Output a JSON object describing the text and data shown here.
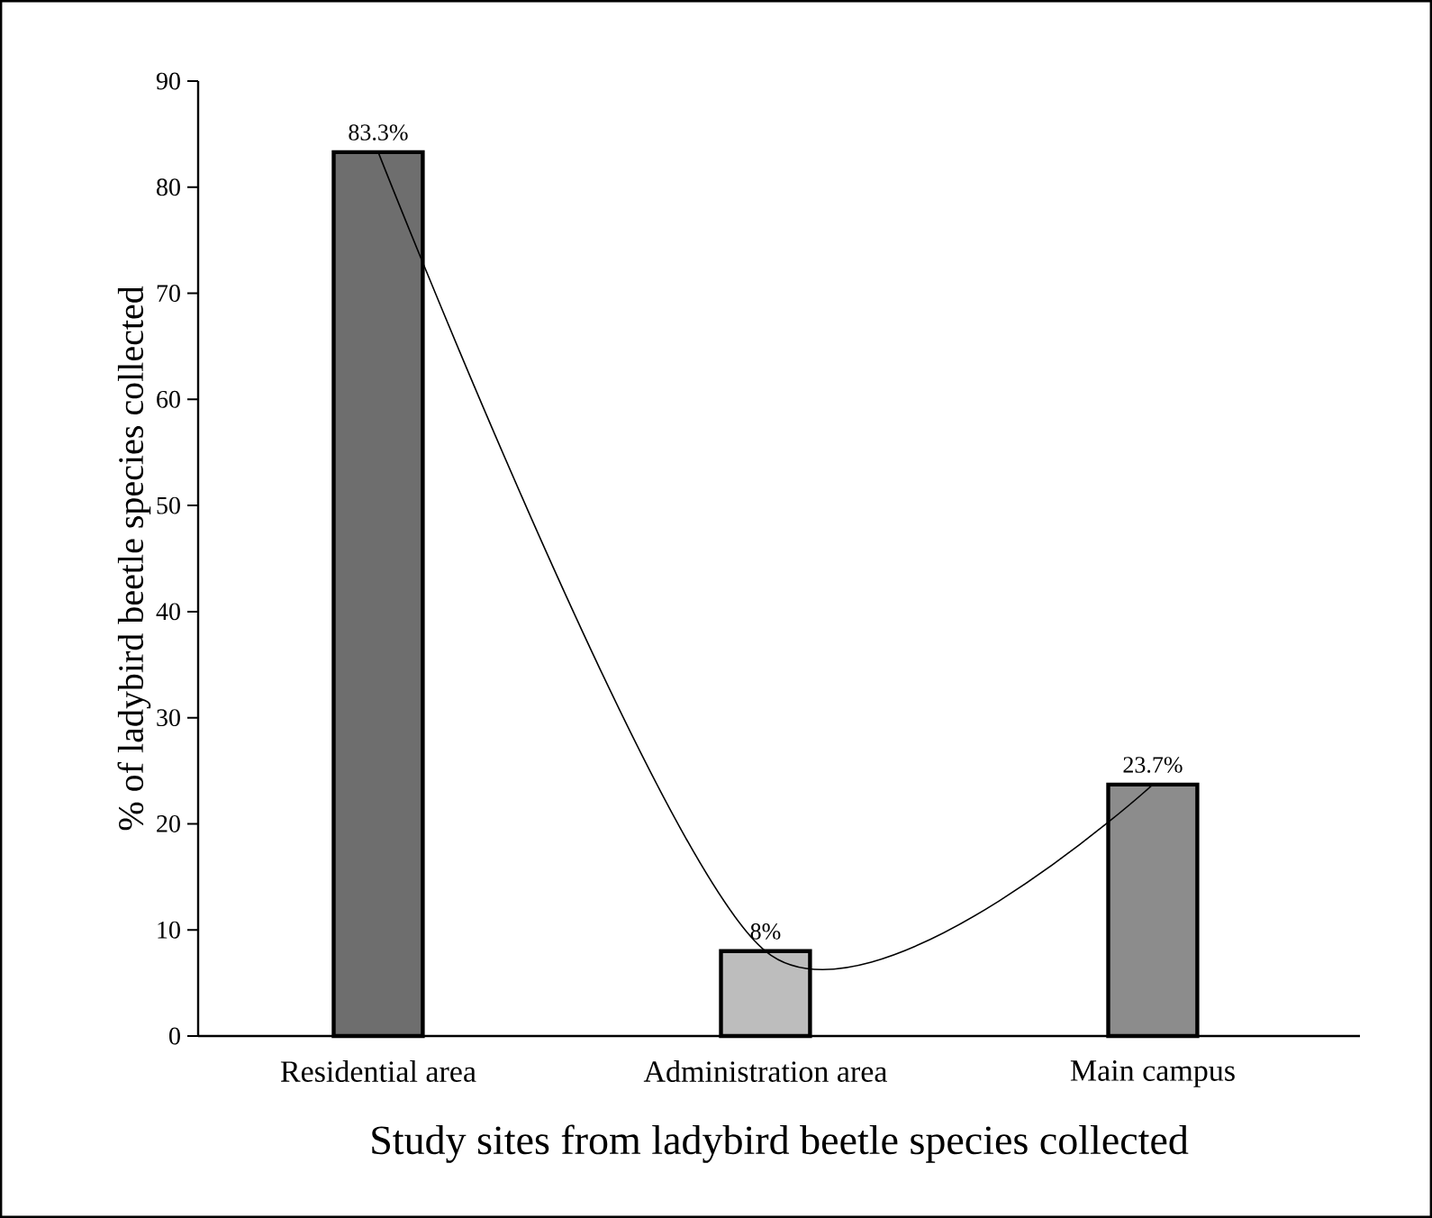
{
  "chart_data": {
    "type": "bar",
    "xlabel": "Study sites from ladybird beetle species collected",
    "ylabel": "% of ladybird beetle species collected",
    "categories": [
      "Residential area",
      "Administration area",
      "Main campus"
    ],
    "series": [
      {
        "colors": [
          "#6e6e6e",
          "#bdbdbd",
          "#8c8c8c"
        ],
        "values": [
          83.3,
          8,
          23.7
        ],
        "value_labels": [
          "83.3%",
          "8%",
          "23.7%"
        ]
      },
      {
        "type": "line",
        "color": "#000000",
        "values": [
          83.3,
          8,
          23.7
        ]
      }
    ],
    "ylim": [
      0,
      90
    ],
    "yticks": [
      0,
      10,
      20,
      30,
      40,
      50,
      60,
      70,
      80,
      90
    ],
    "grid": false,
    "marker": "none",
    "line_style": "solid"
  }
}
